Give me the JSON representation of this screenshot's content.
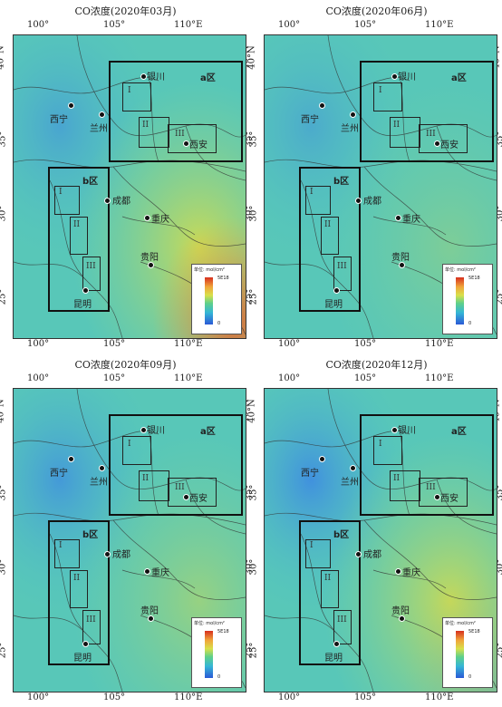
{
  "panels": [
    {
      "title": "CO浓度(2020年03月)"
    },
    {
      "title": "CO浓度(2020年06月)"
    },
    {
      "title": "CO浓度(2020年09月)"
    },
    {
      "title": "CO浓度(2020年12月)"
    }
  ],
  "axes": {
    "x_ticks": [
      "100°",
      "105°",
      "110°E"
    ],
    "y_ticks": [
      "40°N",
      "35°",
      "30°",
      "25°"
    ]
  },
  "cities": {
    "yinchuan": "银川",
    "xining": "西宁",
    "lanzhou": "兰州",
    "xian": "西安",
    "chengdu": "成都",
    "chongqing": "重庆",
    "guiyang": "贵阳",
    "kunming": "昆明"
  },
  "regions": {
    "a": "a区",
    "b": "b区"
  },
  "subregions": {
    "I": "I",
    "II": "II",
    "III": "III"
  },
  "legend": {
    "unit": "单位: mol/cm²",
    "max": "5E18",
    "min": "0"
  },
  "colors": {
    "low": "#2b59d6",
    "mid": "#5fd08a",
    "high": "#d7301f",
    "base": "#52c6c4"
  }
}
